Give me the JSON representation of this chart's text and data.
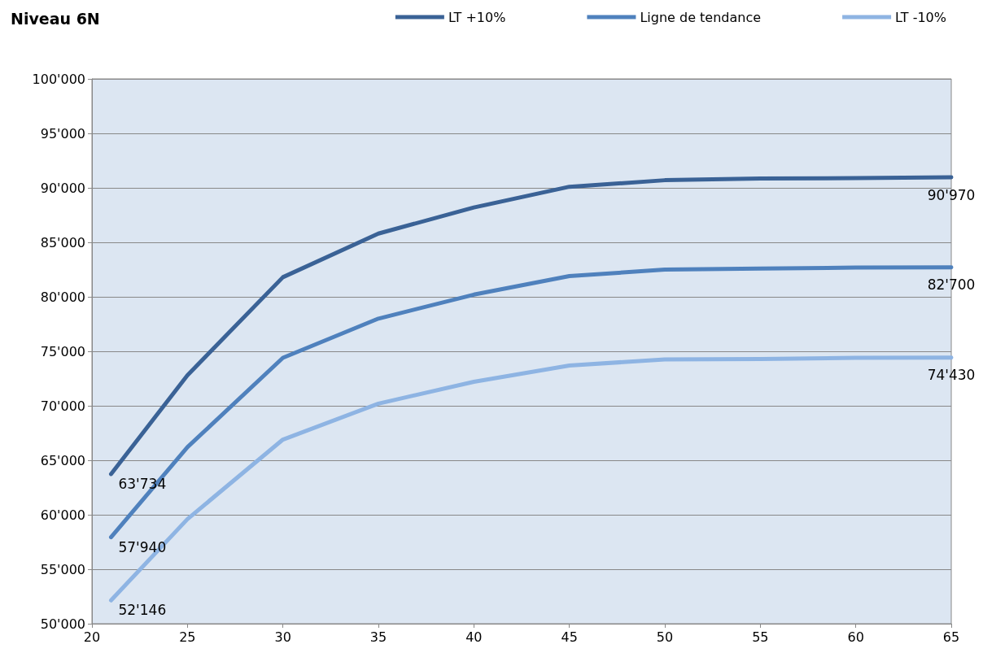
{
  "chart_data": {
    "type": "line",
    "title": "Niveau 6N",
    "x": [
      21,
      25,
      30,
      35,
      40,
      45,
      50,
      55,
      60,
      65
    ],
    "series": [
      {
        "name": "LT +10%",
        "color": "#3a6296",
        "values": [
          63734,
          72800,
          81800,
          85800,
          88200,
          90100,
          90700,
          90850,
          90900,
          90970
        ],
        "value_labels": [
          "63'734",
          null,
          null,
          null,
          null,
          null,
          null,
          null,
          null,
          "90'970"
        ]
      },
      {
        "name": "Ligne de tendance",
        "color": "#4f81bd",
        "values": [
          57940,
          66200,
          74400,
          78000,
          80200,
          81900,
          82500,
          82600,
          82680,
          82700
        ],
        "value_labels": [
          "57'940",
          null,
          null,
          null,
          null,
          null,
          null,
          null,
          null,
          "82'700"
        ]
      },
      {
        "name": "LT -10%",
        "color": "#8eb4e3",
        "values": [
          52146,
          59600,
          66900,
          70200,
          72200,
          73700,
          74250,
          74300,
          74400,
          74430
        ],
        "value_labels": [
          "52'146",
          null,
          null,
          null,
          null,
          null,
          null,
          null,
          null,
          "74'430"
        ]
      }
    ],
    "xlim": [
      20,
      65
    ],
    "xticks": [
      20,
      25,
      30,
      35,
      40,
      45,
      50,
      55,
      60,
      65
    ],
    "ylim": [
      50000,
      100000
    ],
    "yticks": [
      {
        "value": 50000,
        "label": "50'000"
      },
      {
        "value": 55000,
        "label": "55'000"
      },
      {
        "value": 60000,
        "label": "60'000"
      },
      {
        "value": 65000,
        "label": "65'000"
      },
      {
        "value": 70000,
        "label": "70'000"
      },
      {
        "value": 75000,
        "label": "75'000"
      },
      {
        "value": 80000,
        "label": "80'000"
      },
      {
        "value": 85000,
        "label": "85'000"
      },
      {
        "value": 90000,
        "label": "90'000"
      },
      {
        "value": 95000,
        "label": "95'000"
      },
      {
        "value": 100000,
        "label": "100'000"
      }
    ],
    "grid": "y",
    "legend": "top right",
    "marker": "none",
    "line_style": "solid"
  }
}
